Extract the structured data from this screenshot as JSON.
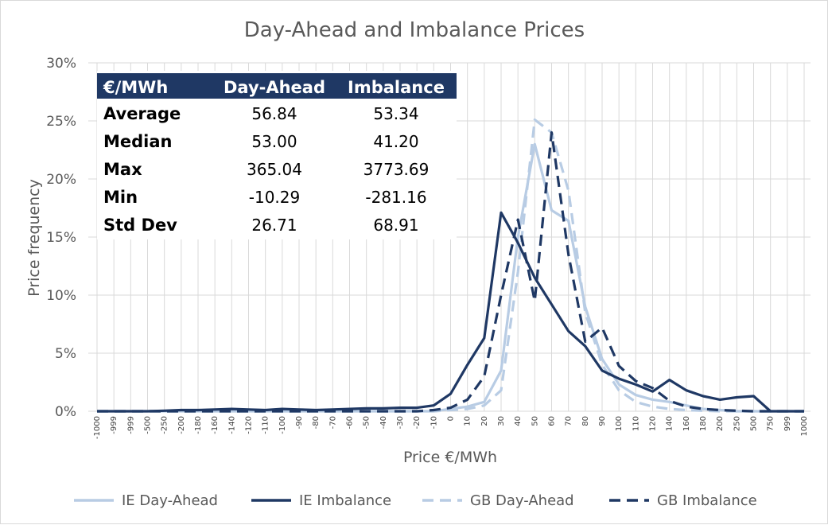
{
  "chart_data": {
    "type": "line",
    "title": "Day-Ahead and Imbalance Prices",
    "xlabel": "Price €/MWh",
    "ylabel": "Price frequency",
    "ylim": [
      0,
      30
    ],
    "yticks": [
      "0%",
      "5%",
      "10%",
      "15%",
      "20%",
      "25%",
      "30%"
    ],
    "grid": "vertical and horizontal gridlines",
    "legend_position": "bottom",
    "categories": [
      "-1000",
      "-999",
      "-999",
      "-500",
      "-250",
      "-200",
      "-180",
      "-160",
      "-140",
      "-120",
      "-110",
      "-100",
      "-90",
      "-80",
      "-70",
      "-60",
      "-50",
      "-40",
      "-30",
      "-20",
      "-10",
      "0",
      "10",
      "20",
      "30",
      "40",
      "50",
      "60",
      "70",
      "80",
      "90",
      "100",
      "110",
      "120",
      "140",
      "160",
      "180",
      "200",
      "250",
      "500",
      "750",
      "999",
      "1000"
    ],
    "series": [
      {
        "name": "IE Day-Ahead",
        "color": "#b8cce4",
        "dash": "solid",
        "values": [
          0,
          0,
          0,
          0,
          0,
          0,
          0,
          0,
          0,
          0,
          0,
          0,
          0,
          0,
          0,
          0,
          0,
          0,
          0,
          0,
          0,
          0.2,
          0.4,
          0.8,
          3.5,
          15.0,
          23.0,
          17.3,
          16.4,
          9.0,
          4.5,
          2.3,
          1.4,
          1.0,
          0.8,
          0.5,
          0.2,
          0.1,
          0,
          0,
          0,
          0,
          0
        ]
      },
      {
        "name": "IE Imbalance",
        "color": "#1f3864",
        "dash": "solid",
        "values": [
          0,
          0,
          0,
          0,
          0.05,
          0.1,
          0.1,
          0.15,
          0.2,
          0.15,
          0.1,
          0.2,
          0.15,
          0.1,
          0.15,
          0.2,
          0.25,
          0.25,
          0.3,
          0.3,
          0.5,
          1.5,
          4.0,
          6.3,
          17.1,
          14.5,
          11.5,
          9.2,
          6.9,
          5.6,
          3.5,
          2.8,
          2.3,
          1.7,
          2.7,
          1.8,
          1.3,
          1.0,
          1.2,
          1.3,
          0,
          0,
          0
        ]
      },
      {
        "name": "GB Day-Ahead",
        "color": "#b8cce4",
        "dash": "dashed",
        "values": [
          0,
          0,
          0,
          0,
          0,
          0,
          0,
          0,
          0,
          0,
          0,
          0,
          0,
          0,
          0,
          0,
          0,
          0,
          0,
          0,
          0,
          0.1,
          0.2,
          0.5,
          1.8,
          12.0,
          25.1,
          24.0,
          19.0,
          8.5,
          4.0,
          1.8,
          0.8,
          0.4,
          0.2,
          0.1,
          0.05,
          0,
          0,
          0,
          0,
          0,
          0
        ]
      },
      {
        "name": "GB Imbalance",
        "color": "#1f3864",
        "dash": "dashed",
        "values": [
          0,
          0,
          0,
          0,
          0,
          0,
          0,
          0,
          0,
          0,
          0,
          0,
          0,
          0,
          0,
          0,
          0,
          0,
          0,
          0,
          0.1,
          0.3,
          1.0,
          3.0,
          10.0,
          16.5,
          9.5,
          24.0,
          13.5,
          6.0,
          7.2,
          3.9,
          2.6,
          2.0,
          0.9,
          0.4,
          0.2,
          0.1,
          0.05,
          0,
          0,
          0,
          0
        ]
      }
    ],
    "summary_table": {
      "header": [
        "€/MWh",
        "Day-Ahead",
        "Imbalance"
      ],
      "rows": [
        [
          "Average",
          "56.84",
          "53.34"
        ],
        [
          "Median",
          "53.00",
          "41.20"
        ],
        [
          "Max",
          "365.04",
          "3773.69"
        ],
        [
          "Min",
          "-10.29",
          "-281.16"
        ],
        [
          "Std Dev",
          "26.71",
          "68.91"
        ]
      ],
      "header_color": "#1f3864"
    }
  }
}
